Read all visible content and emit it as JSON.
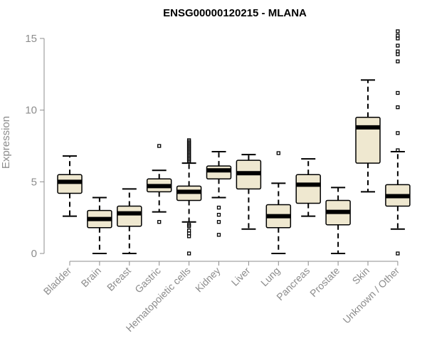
{
  "chart_data": {
    "type": "boxplot",
    "title": "ENSG00000120215 - MLANA",
    "xlabel": "",
    "ylabel": "Expression",
    "ylim": [
      0,
      15.5
    ],
    "yticks": [
      0,
      5,
      10,
      15
    ],
    "colors": {
      "box_fill": "#efe8d0",
      "box_stroke": "#000000",
      "axis": "#8c8c8c"
    },
    "categories": [
      "Bladder",
      "Brain",
      "Breast",
      "Gastric",
      "Hematopoietic cells",
      "Kidney",
      "Liver",
      "Lung",
      "Pancreas",
      "Prostate",
      "Skin",
      "Unknown / Other"
    ],
    "boxes": [
      {
        "category": "Bladder",
        "whisker_low": 2.6,
        "q1": 4.2,
        "median": 5.0,
        "q3": 5.5,
        "whisker_high": 6.8,
        "outliers": []
      },
      {
        "category": "Brain",
        "whisker_low": 0.0,
        "q1": 1.8,
        "median": 2.4,
        "q3": 3.0,
        "whisker_high": 3.9,
        "outliers": []
      },
      {
        "category": "Breast",
        "whisker_low": 0.0,
        "q1": 1.9,
        "median": 2.8,
        "q3": 3.3,
        "whisker_high": 4.5,
        "outliers": []
      },
      {
        "category": "Gastric",
        "whisker_low": 2.9,
        "q1": 4.3,
        "median": 4.7,
        "q3": 5.2,
        "whisker_high": 5.8,
        "outliers": [
          2.2,
          7.5
        ]
      },
      {
        "category": "Hematopoietic cells",
        "whisker_low": 2.2,
        "q1": 3.7,
        "median": 4.3,
        "q3": 4.7,
        "whisker_high": 6.3,
        "outliers": [
          0.0,
          1.2,
          1.4,
          1.6,
          1.9,
          2.0,
          6.4,
          6.5,
          6.6,
          6.7,
          6.8,
          6.9,
          7.0,
          7.1,
          7.2,
          7.3,
          7.4,
          7.5,
          7.6,
          7.7,
          7.8,
          7.9
        ]
      },
      {
        "category": "Kidney",
        "whisker_low": 3.9,
        "q1": 5.2,
        "median": 5.8,
        "q3": 6.1,
        "whisker_high": 7.1,
        "outliers": [
          1.3,
          2.2,
          2.7,
          3.2
        ]
      },
      {
        "category": "Liver",
        "whisker_low": 1.7,
        "q1": 4.5,
        "median": 5.6,
        "q3": 6.5,
        "whisker_high": 6.9,
        "outliers": []
      },
      {
        "category": "Lung",
        "whisker_low": 0.0,
        "q1": 1.8,
        "median": 2.6,
        "q3": 3.4,
        "whisker_high": 4.9,
        "outliers": [
          7.0
        ]
      },
      {
        "category": "Pancreas",
        "whisker_low": 2.6,
        "q1": 3.5,
        "median": 4.8,
        "q3": 5.5,
        "whisker_high": 6.6,
        "outliers": []
      },
      {
        "category": "Prostate",
        "whisker_low": 0.0,
        "q1": 2.0,
        "median": 2.9,
        "q3": 3.7,
        "whisker_high": 4.6,
        "outliers": []
      },
      {
        "category": "Skin",
        "whisker_low": 4.3,
        "q1": 6.3,
        "median": 8.8,
        "q3": 9.5,
        "whisker_high": 12.1,
        "outliers": []
      },
      {
        "category": "Unknown / Other",
        "whisker_low": 1.7,
        "q1": 3.3,
        "median": 4.0,
        "q3": 4.8,
        "whisker_high": 7.1,
        "outliers": [
          0.0,
          7.2,
          8.4,
          10.2,
          11.2,
          13.4,
          13.9,
          14.1,
          14.5,
          15.0,
          15.2,
          15.5
        ]
      }
    ]
  }
}
